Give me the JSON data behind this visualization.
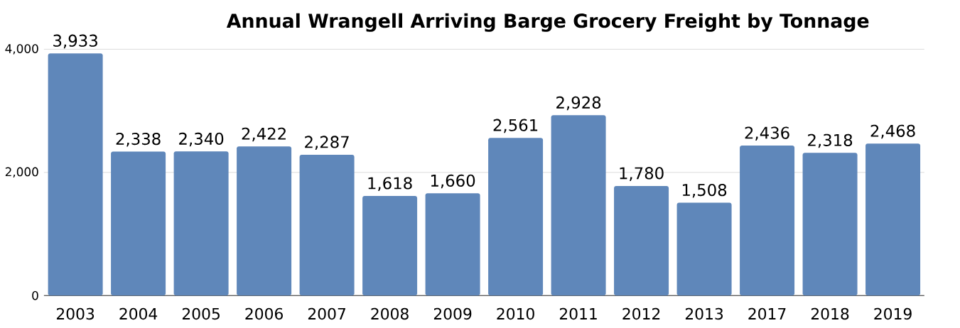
{
  "chart_data": {
    "type": "bar",
    "title": "Annual Wrangell Arriving Barge Grocery Freight by Tonnage",
    "categories": [
      "2003",
      "2004",
      "2005",
      "2006",
      "2007",
      "2008",
      "2009",
      "2010",
      "2011",
      "2012",
      "2013",
      "2017",
      "2018",
      "2019"
    ],
    "values": [
      3933,
      2338,
      2340,
      2422,
      2287,
      1618,
      1660,
      2561,
      2928,
      1780,
      1508,
      2436,
      2318,
      2468
    ],
    "value_labels": [
      "3,933",
      "2,338",
      "2,340",
      "2,422",
      "2,287",
      "1,618",
      "1,660",
      "2,561",
      "2,928",
      "1,780",
      "1,508",
      "2,436",
      "2,318",
      "2,468"
    ],
    "color": "#5f87ba",
    "ylim": [
      0,
      4000
    ],
    "yticks": [
      {
        "value": 0,
        "label": "0"
      },
      {
        "value": 2000,
        "label": "2,000"
      },
      {
        "value": 4000,
        "label": "4,000"
      }
    ],
    "grid": "y"
  }
}
